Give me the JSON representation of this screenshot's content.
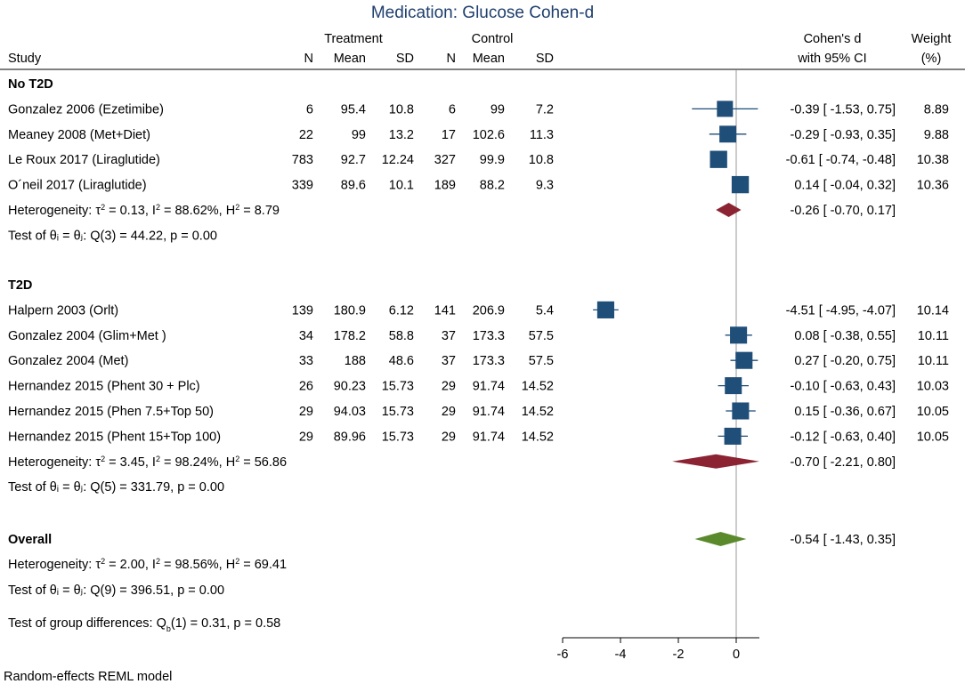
{
  "chart_data": {
    "type": "forest",
    "title": "Medication:  Glucose Cohen-d",
    "header": {
      "treatment": "Treatment",
      "control": "Control",
      "study": "Study",
      "n": "N",
      "mean": "Mean",
      "sd": "SD",
      "effect_line1": "Cohen's d",
      "effect_line2": "with 95% CI",
      "weight_line1": "Weight",
      "weight_line2": "(%)"
    },
    "x_axis": {
      "min": -6,
      "max": 0.8,
      "ticks": [
        -6,
        -4,
        -2,
        0
      ],
      "reference_line": 0
    },
    "colors": {
      "study": "#1f4e79",
      "subgroup_diamond": "#8b2332",
      "overall_diamond": "#5a8a2b",
      "line": "#1f4e79",
      "refline": "#999999"
    },
    "groups": [
      {
        "name": "No T2D",
        "studies": [
          {
            "label": "Gonzalez 2006 (Ezetimibe)",
            "n1": "6",
            "mean1": "95.4",
            "sd1": "10.8",
            "n2": "6",
            "mean2": "99",
            "sd2": "7.2",
            "d": -0.39,
            "lo": -1.53,
            "hi": 0.75,
            "ci_text": "-0.39 [ -1.53,  0.75]",
            "weight": "8.89"
          },
          {
            "label": "Meaney 2008 (Met+Diet)",
            "n1": "22",
            "mean1": "99",
            "sd1": "13.2",
            "n2": "17",
            "mean2": "102.6",
            "sd2": "11.3",
            "d": -0.29,
            "lo": -0.93,
            "hi": 0.35,
            "ci_text": "-0.29 [ -0.93,  0.35]",
            "weight": "9.88"
          },
          {
            "label": "Le Roux 2017 (Liraglutide)",
            "n1": "783",
            "mean1": "92.7",
            "sd1": "12.24",
            "n2": "327",
            "mean2": "99.9",
            "sd2": "10.8",
            "d": -0.61,
            "lo": -0.74,
            "hi": -0.48,
            "ci_text": "-0.61 [ -0.74, -0.48]",
            "weight": "10.38"
          },
          {
            "label": "O´neil 2017 (Liraglutide)",
            "n1": "339",
            "mean1": "89.6",
            "sd1": "10.1",
            "n2": "189",
            "mean2": "88.2",
            "sd2": "9.3",
            "d": 0.14,
            "lo": -0.04,
            "hi": 0.32,
            "ci_text": "0.14 [ -0.04,  0.32]",
            "weight": "10.36"
          }
        ],
        "heterogeneity": "Heterogeneity: τ² = 0.13, I² = 88.62%, H² = 8.79",
        "test": "Test of θᵢ = θⱼ: Q(3) = 44.22, p = 0.00",
        "summary": {
          "d": -0.26,
          "lo": -0.7,
          "hi": 0.17,
          "ci_text": "-0.26 [ -0.70,  0.17]"
        }
      },
      {
        "name": "T2D",
        "studies": [
          {
            "label": "Halpern 2003 (Orlt)",
            "n1": "139",
            "mean1": "180.9",
            "sd1": "6.12",
            "n2": "141",
            "mean2": "206.9",
            "sd2": "5.4",
            "d": -4.51,
            "lo": -4.95,
            "hi": -4.07,
            "ci_text": "-4.51 [ -4.95, -4.07]",
            "weight": "10.14"
          },
          {
            "label": "Gonzalez 2004 (Glim+Met )",
            "n1": "34",
            "mean1": "178.2",
            "sd1": "58.8",
            "n2": "37",
            "mean2": "173.3",
            "sd2": "57.5",
            "d": 0.08,
            "lo": -0.38,
            "hi": 0.55,
            "ci_text": "0.08 [ -0.38,  0.55]",
            "weight": "10.11"
          },
          {
            "label": "Gonzalez 2004 (Met)",
            "n1": "33",
            "mean1": "188",
            "sd1": "48.6",
            "n2": "37",
            "mean2": "173.3",
            "sd2": "57.5",
            "d": 0.27,
            "lo": -0.2,
            "hi": 0.75,
            "ci_text": "0.27 [ -0.20,  0.75]",
            "weight": "10.11"
          },
          {
            "label": "Hernandez  2015 (Phent 30 + Plc)",
            "n1": "26",
            "mean1": "90.23",
            "sd1": "15.73",
            "n2": "29",
            "mean2": "91.74",
            "sd2": "14.52",
            "d": -0.1,
            "lo": -0.63,
            "hi": 0.43,
            "ci_text": "-0.10 [ -0.63,  0.43]",
            "weight": "10.03"
          },
          {
            "label": "Hernandez  2015 (Phen 7.5+Top 50)",
            "n1": "29",
            "mean1": "94.03",
            "sd1": "15.73",
            "n2": "29",
            "mean2": "91.74",
            "sd2": "14.52",
            "d": 0.15,
            "lo": -0.36,
            "hi": 0.67,
            "ci_text": "0.15 [ -0.36,  0.67]",
            "weight": "10.05"
          },
          {
            "label": "Hernandez  2015 (Phent 15+Top 100)",
            "n1": "29",
            "mean1": "89.96",
            "sd1": "15.73",
            "n2": "29",
            "mean2": "91.74",
            "sd2": "14.52",
            "d": -0.12,
            "lo": -0.63,
            "hi": 0.4,
            "ci_text": "-0.12 [ -0.63,  0.40]",
            "weight": "10.05"
          }
        ],
        "heterogeneity": "Heterogeneity: τ² = 3.45, I² = 98.24%, H² = 56.86",
        "test": "Test of θᵢ = θⱼ: Q(5) = 331.79, p = 0.00",
        "summary": {
          "d": -0.7,
          "lo": -2.21,
          "hi": 0.8,
          "ci_text": "-0.70 [ -2.21,  0.80]"
        }
      }
    ],
    "overall": {
      "label": "Overall",
      "d": -0.54,
      "lo": -1.43,
      "hi": 0.35,
      "ci_text": "-0.54 [ -1.43,  0.35]",
      "heterogeneity": "Heterogeneity: τ² = 2.00, I² = 98.56%, H² = 69.41",
      "test": "Test of θᵢ = θⱼ: Q(9) = 396.51, p = 0.00",
      "group_test": "Test of group differences: Qb(1) = 0.31, p = 0.58"
    },
    "note": "Random-effects REML model"
  }
}
